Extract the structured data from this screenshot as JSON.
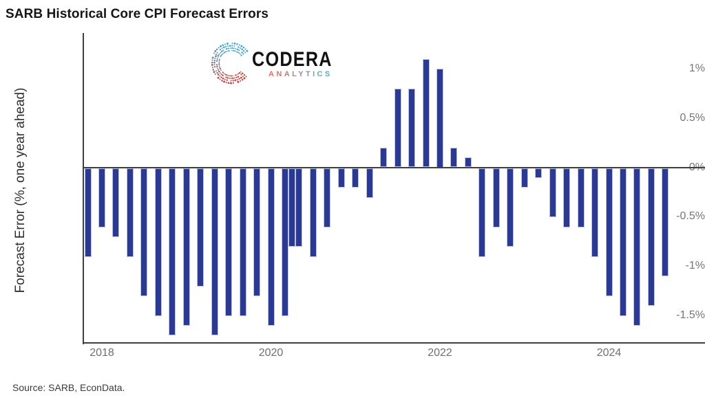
{
  "title": "SARB Historical Core CPI Forecast Errors",
  "source": "Source: SARB, EconData.",
  "logo": {
    "name": "CODERA",
    "subtitle": "ANALYTICS",
    "wordmark_color": "#121212",
    "subtitle_color_start": "#D9736B",
    "subtitle_color_end": "#55ADCB",
    "mark_color_red": "#C4443E",
    "mark_color_blue": "#45A6CB"
  },
  "colors": {
    "bar_fill": "#2B3990",
    "bar_edge": "#BCC3E6",
    "axis": "#3E3E3E",
    "tick_label": "#757575"
  },
  "chart_data": {
    "type": "bar",
    "title": "SARB Historical Core CPI Forecast Errors",
    "xlabel": "",
    "ylabel": "Forecast Error (%, one year ahead)",
    "unit": "%",
    "grid": false,
    "legend": "none",
    "ylim": [
      -1.78,
      1.36
    ],
    "xlim": [
      2017.78,
      2025.14
    ],
    "yticks": [
      {
        "label": "1%",
        "value": 1
      },
      {
        "label": "0.5%",
        "value": 0.5
      },
      {
        "label": "0%",
        "value": 0
      },
      {
        "label": "-0.5%",
        "value": -0.5
      },
      {
        "label": "-1%",
        "value": -1
      },
      {
        "label": "-1.5%",
        "value": -1.5
      }
    ],
    "xticks": [
      {
        "label": "2018",
        "value": 2018
      },
      {
        "label": "2020",
        "value": 2020
      },
      {
        "label": "2022",
        "value": 2022
      },
      {
        "label": "2024",
        "value": 2024
      }
    ],
    "dates": [
      "2017-11",
      "2018-01",
      "2018-03",
      "2018-05",
      "2018-07",
      "2018-09",
      "2018-11",
      "2019-01",
      "2019-03",
      "2019-05",
      "2019-07",
      "2019-09",
      "2019-11",
      "2020-01",
      "2020-03",
      "2020-04",
      "2020-05",
      "2020-07",
      "2020-09",
      "2020-11",
      "2021-01",
      "2021-03",
      "2021-05",
      "2021-07",
      "2021-09",
      "2021-11",
      "2022-01",
      "2022-03",
      "2022-05",
      "2022-07",
      "2022-09",
      "2022-11",
      "2023-01",
      "2023-03",
      "2023-05",
      "2023-07",
      "2023-09",
      "2023-11",
      "2024-01",
      "2024-03",
      "2024-05",
      "2024-07",
      "2024-09"
    ],
    "values": [
      -0.9,
      -0.6,
      -0.7,
      -0.9,
      -1.3,
      -1.5,
      -1.7,
      -1.6,
      -1.2,
      -1.7,
      -1.5,
      -1.5,
      -1.3,
      -1.6,
      -1.5,
      -0.8,
      -0.8,
      -0.9,
      -0.6,
      -0.2,
      -0.2,
      -0.3,
      0.2,
      0.8,
      0.8,
      1.1,
      1.0,
      0.2,
      0.1,
      -0.9,
      -0.6,
      -0.8,
      -0.2,
      -0.1,
      -0.5,
      -0.6,
      -0.6,
      -0.9,
      -1.3,
      -1.5,
      -1.6,
      -1.4,
      -1.1
    ]
  }
}
